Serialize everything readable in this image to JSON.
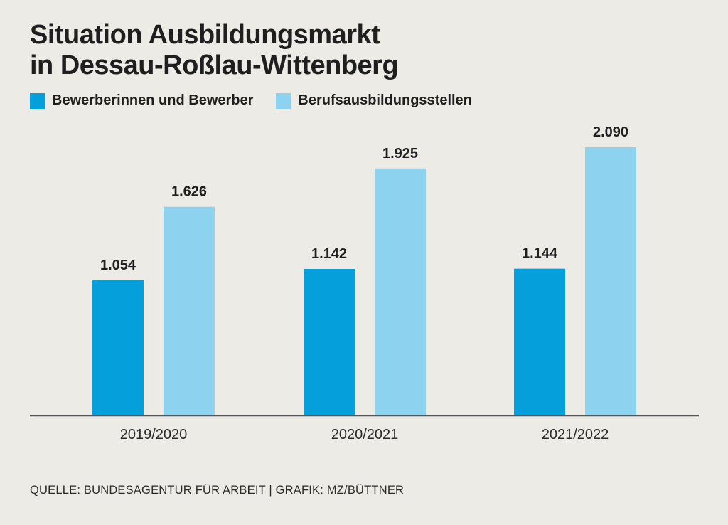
{
  "title": {
    "line1": "Situation Ausbildungsmarkt",
    "line2": "in Dessau-Roßlau-Wittenberg"
  },
  "source": "QUELLE: BUNDESAGENTUR FÜR ARBEIT | GRAFIK: MZ/BÜTTNER",
  "colors": {
    "background": "#ecebe5",
    "series1": "#059fdb",
    "series2": "#8dd3f0",
    "text": "#1f1f1f",
    "axis": "#555555"
  },
  "chart_data": {
    "type": "bar",
    "title": "Situation Ausbildungsmarkt in Dessau-Roßlau-Wittenberg",
    "xlabel": "",
    "ylabel": "",
    "categories": [
      "2019/2020",
      "2020/2021",
      "2021/2022"
    ],
    "series": [
      {
        "name": "Bewerberinnen und Bewerber",
        "color": "#059fdb",
        "values": [
          1054,
          1142,
          1144
        ],
        "labels": [
          "1.054",
          "1.142",
          "1.144"
        ]
      },
      {
        "name": "Berufsausbildungsstellen",
        "color": "#8dd3f0",
        "values": [
          1626,
          1925,
          2090
        ],
        "labels": [
          "1.626",
          "1.925",
          "2.090"
        ]
      }
    ],
    "ylim": [
      0,
      2090
    ],
    "grid": false,
    "legend": "top-left"
  }
}
